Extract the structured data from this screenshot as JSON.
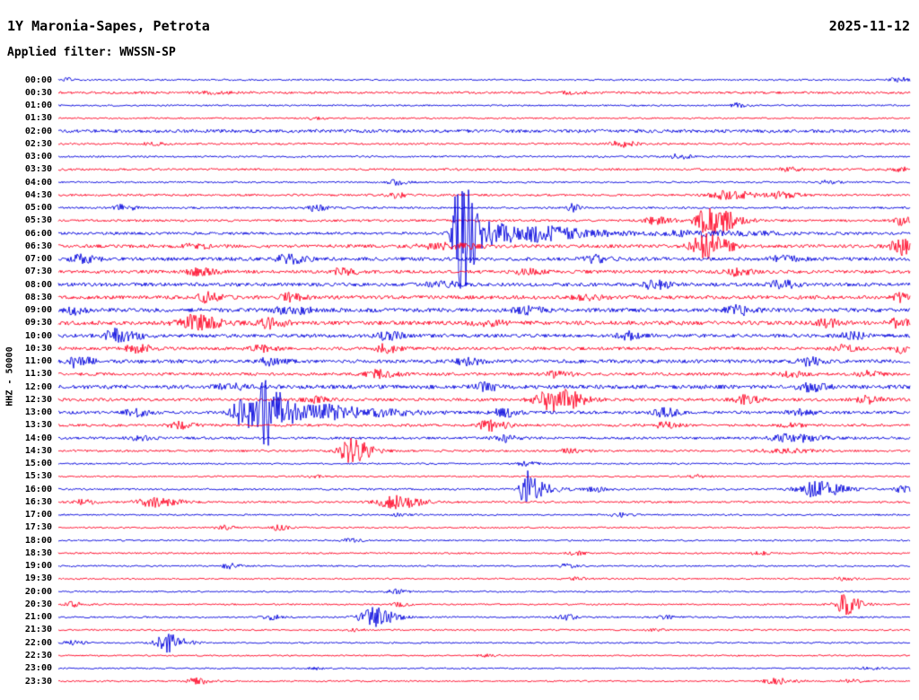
{
  "header": {
    "station_title": "1Y Maronia-Sapes, Petrota",
    "date": "2025-11-12",
    "filter_label": "Applied filter: WWSSN-SP"
  },
  "y_axis_label": "HHZ - 50000",
  "colors": {
    "trace_blue": "#0000dd",
    "trace_red": "#ff0022",
    "text": "#000000",
    "background": "#ffffff"
  },
  "chart_data": {
    "type": "line",
    "subtype": "helicorder-seismogram",
    "title": "1Y Maronia-Sapes, Petrota",
    "date": "2025-11-12",
    "filter": "WWSSN-SP",
    "channel_scale": "HHZ - 50000",
    "minutes_per_row": 30,
    "legend": "alternating blue/red traces, one 30-minute segment per row",
    "event_format": "[x_fraction_of_row, peak_amplitude_px, rise_px, decay_px]",
    "rows": [
      {
        "time": "00:00",
        "color": "blue",
        "noise": 0.9,
        "events": [
          [
            0.985,
            3,
            6,
            10
          ],
          [
            0.01,
            2,
            3,
            6
          ]
        ]
      },
      {
        "time": "00:30",
        "color": "red",
        "noise": 1.3,
        "events": [
          [
            0.18,
            1.5,
            8,
            14
          ],
          [
            0.6,
            1.2,
            8,
            12
          ]
        ]
      },
      {
        "time": "01:00",
        "color": "blue",
        "noise": 0.9,
        "events": [
          [
            0.795,
            2.5,
            4,
            8
          ]
        ]
      },
      {
        "time": "01:30",
        "color": "red",
        "noise": 0.9,
        "events": [
          [
            0.3,
            1.2,
            6,
            10
          ]
        ]
      },
      {
        "time": "02:00",
        "color": "blue",
        "noise": 1.8,
        "events": []
      },
      {
        "time": "02:30",
        "color": "red",
        "noise": 1.1,
        "events": [
          [
            0.658,
            3.5,
            8,
            14
          ],
          [
            0.11,
            1.8,
            6,
            10
          ]
        ]
      },
      {
        "time": "03:00",
        "color": "blue",
        "noise": 1.0,
        "events": [
          [
            0.727,
            2.5,
            8,
            12
          ]
        ]
      },
      {
        "time": "03:30",
        "color": "red",
        "noise": 1.2,
        "events": [
          [
            0.858,
            2,
            8,
            12
          ],
          [
            0.99,
            2.5,
            6,
            10
          ]
        ]
      },
      {
        "time": "04:00",
        "color": "blue",
        "noise": 1.0,
        "events": [
          [
            0.395,
            3.5,
            5,
            9
          ],
          [
            0.9,
            2,
            6,
            10
          ]
        ]
      },
      {
        "time": "04:30",
        "color": "red",
        "noise": 1.2,
        "events": [
          [
            0.785,
            4.5,
            14,
            24
          ],
          [
            0.395,
            3.5,
            6,
            10
          ],
          [
            0.848,
            3.5,
            8,
            14
          ]
        ]
      },
      {
        "time": "05:00",
        "color": "blue",
        "noise": 1.1,
        "events": [
          [
            0.074,
            3.5,
            7,
            12
          ],
          [
            0.3,
            3.5,
            6,
            10
          ],
          [
            0.603,
            5,
            3,
            6
          ]
        ]
      },
      {
        "time": "05:30",
        "color": "red",
        "noise": 1.3,
        "events": [
          [
            0.764,
            16,
            10,
            22
          ],
          [
            0.99,
            5,
            6,
            10
          ],
          [
            0.7,
            4,
            8,
            16
          ]
        ]
      },
      {
        "time": "06:00",
        "color": "blue",
        "noise": 1.5,
        "events": [
          [
            0.474,
            62,
            6,
            9
          ],
          [
            0.468,
            18,
            4,
            6
          ],
          [
            0.49,
            14,
            8,
            40
          ],
          [
            0.56,
            6,
            10,
            60
          ],
          [
            0.75,
            3,
            30,
            60
          ]
        ]
      },
      {
        "time": "06:30",
        "color": "red",
        "noise": 1.8,
        "events": [
          [
            0.758,
            13,
            10,
            20
          ],
          [
            0.99,
            9,
            8,
            10
          ],
          [
            0.45,
            3,
            20,
            30
          ],
          [
            0.16,
            2.5,
            10,
            15
          ]
        ]
      },
      {
        "time": "07:00",
        "color": "blue",
        "noise": 2.0,
        "events": [
          [
            0.026,
            4,
            8,
            14
          ],
          [
            0.269,
            4.5,
            10,
            16
          ],
          [
            0.627,
            4,
            8,
            14
          ],
          [
            0.85,
            3,
            10,
            14
          ]
        ]
      },
      {
        "time": "07:30",
        "color": "red",
        "noise": 1.8,
        "events": [
          [
            0.163,
            4.5,
            8,
            14
          ],
          [
            0.332,
            4,
            8,
            12
          ],
          [
            0.795,
            4,
            8,
            12
          ],
          [
            0.55,
            3,
            10,
            14
          ]
        ]
      },
      {
        "time": "08:00",
        "color": "blue",
        "noise": 2.0,
        "events": [
          [
            0.7,
            5.5,
            8,
            12
          ],
          [
            0.848,
            4.5,
            8,
            12
          ],
          [
            0.45,
            3,
            12,
            16
          ]
        ]
      },
      {
        "time": "08:30",
        "color": "red",
        "noise": 2.0,
        "events": [
          [
            0.174,
            5,
            8,
            14
          ],
          [
            0.269,
            4,
            8,
            12
          ],
          [
            0.99,
            4.5,
            6,
            10
          ],
          [
            0.62,
            3,
            10,
            14
          ]
        ]
      },
      {
        "time": "09:00",
        "color": "blue",
        "noise": 2.2,
        "events": [
          [
            0.269,
            6,
            10,
            16
          ],
          [
            0.795,
            5.5,
            8,
            14
          ],
          [
            0.016,
            4.5,
            6,
            10
          ],
          [
            0.55,
            3.5,
            10,
            14
          ]
        ]
      },
      {
        "time": "09:30",
        "color": "red",
        "noise": 2.2,
        "events": [
          [
            0.158,
            8,
            12,
            22
          ],
          [
            0.248,
            5.5,
            8,
            14
          ],
          [
            0.901,
            4.5,
            8,
            12
          ],
          [
            0.985,
            5,
            6,
            10
          ],
          [
            0.5,
            3,
            10,
            16
          ]
        ]
      },
      {
        "time": "10:00",
        "color": "blue",
        "noise": 2.0,
        "events": [
          [
            0.068,
            7,
            10,
            18
          ],
          [
            0.384,
            4.5,
            8,
            14
          ],
          [
            0.669,
            4,
            8,
            12
          ],
          [
            0.93,
            3.5,
            8,
            12
          ]
        ]
      },
      {
        "time": "10:30",
        "color": "red",
        "noise": 1.7,
        "events": [
          [
            0.09,
            4.5,
            8,
            14
          ],
          [
            0.237,
            3.5,
            8,
            12
          ],
          [
            0.384,
            4.5,
            8,
            12
          ],
          [
            0.922,
            3.5,
            8,
            12
          ],
          [
            0.99,
            4.5,
            6,
            8
          ]
        ]
      },
      {
        "time": "11:00",
        "color": "blue",
        "noise": 2.0,
        "events": [
          [
            0.021,
            6.5,
            6,
            12
          ],
          [
            0.248,
            4,
            8,
            12
          ],
          [
            0.479,
            4,
            8,
            12
          ],
          [
            0.88,
            4,
            8,
            12
          ]
        ]
      },
      {
        "time": "11:30",
        "color": "red",
        "noise": 1.7,
        "events": [
          [
            0.374,
            4.5,
            8,
            14
          ],
          [
            0.585,
            3.5,
            8,
            12
          ],
          [
            0.859,
            3.5,
            8,
            12
          ],
          [
            0.95,
            3,
            8,
            10
          ]
        ]
      },
      {
        "time": "12:00",
        "color": "blue",
        "noise": 2.2,
        "events": [
          [
            0.5,
            4,
            8,
            12
          ],
          [
            0.88,
            4.5,
            8,
            14
          ],
          [
            0.2,
            3,
            10,
            14
          ]
        ]
      },
      {
        "time": "12:30",
        "color": "red",
        "noise": 1.7,
        "events": [
          [
            0.58,
            15,
            12,
            22
          ],
          [
            0.806,
            4.5,
            8,
            12
          ],
          [
            0.3,
            3,
            8,
            12
          ],
          [
            0.95,
            4,
            8,
            12
          ]
        ]
      },
      {
        "time": "13:00",
        "color": "blue",
        "noise": 1.6,
        "events": [
          [
            0.242,
            38,
            8,
            12
          ],
          [
            0.216,
            16,
            8,
            10
          ],
          [
            0.262,
            12,
            6,
            30
          ],
          [
            0.32,
            6,
            10,
            60
          ],
          [
            0.521,
            5.5,
            8,
            12
          ],
          [
            0.711,
            4.5,
            8,
            12
          ],
          [
            0.869,
            4,
            8,
            12
          ],
          [
            0.09,
            4,
            8,
            12
          ]
        ]
      },
      {
        "time": "13:30",
        "color": "red",
        "noise": 1.4,
        "events": [
          [
            0.142,
            3.5,
            8,
            12
          ],
          [
            0.506,
            6,
            8,
            14
          ],
          [
            0.711,
            3,
            8,
            12
          ],
          [
            0.86,
            2.5,
            8,
            10
          ]
        ]
      },
      {
        "time": "14:00",
        "color": "blue",
        "noise": 1.4,
        "events": [
          [
            0.521,
            4,
            8,
            12
          ],
          [
            0.859,
            4.5,
            16,
            24
          ],
          [
            0.095,
            2.5,
            8,
            10
          ]
        ]
      },
      {
        "time": "14:30",
        "color": "red",
        "noise": 1.2,
        "events": [
          [
            0.342,
            13,
            8,
            18
          ],
          [
            0.85,
            2.5,
            16,
            24
          ],
          [
            0.6,
            2,
            8,
            12
          ]
        ]
      },
      {
        "time": "15:00",
        "color": "blue",
        "noise": 0.9,
        "events": [
          [
            0.548,
            2.5,
            6,
            10
          ]
        ]
      },
      {
        "time": "15:30",
        "color": "red",
        "noise": 0.9,
        "events": [
          [
            0.3,
            1.5,
            6,
            10
          ],
          [
            0.75,
            1.5,
            6,
            10
          ]
        ]
      },
      {
        "time": "16:00",
        "color": "blue",
        "noise": 1.1,
        "events": [
          [
            0.548,
            20,
            4,
            8
          ],
          [
            0.556,
            8,
            4,
            20
          ],
          [
            0.89,
            9,
            14,
            22
          ],
          [
            0.99,
            3.5,
            6,
            10
          ],
          [
            0.63,
            3,
            6,
            10
          ]
        ]
      },
      {
        "time": "16:30",
        "color": "red",
        "noise": 1.1,
        "events": [
          [
            0.111,
            5.5,
            12,
            20
          ],
          [
            0.395,
            7,
            14,
            22
          ],
          [
            0.03,
            2.5,
            8,
            10
          ]
        ]
      },
      {
        "time": "17:00",
        "color": "blue",
        "noise": 0.9,
        "events": [
          [
            0.658,
            2.5,
            6,
            10
          ],
          [
            0.4,
            1.5,
            6,
            10
          ]
        ]
      },
      {
        "time": "17:30",
        "color": "red",
        "noise": 0.9,
        "events": [
          [
            0.195,
            3,
            6,
            10
          ],
          [
            0.258,
            2.5,
            6,
            10
          ]
        ]
      },
      {
        "time": "18:00",
        "color": "blue",
        "noise": 0.9,
        "events": [
          [
            0.342,
            2,
            6,
            10
          ]
        ]
      },
      {
        "time": "18:30",
        "color": "red",
        "noise": 0.9,
        "events": [
          [
            0.606,
            2,
            6,
            10
          ],
          [
            0.82,
            2,
            6,
            10
          ]
        ]
      },
      {
        "time": "19:00",
        "color": "blue",
        "noise": 0.9,
        "events": [
          [
            0.2,
            3,
            6,
            10
          ],
          [
            0.595,
            2,
            6,
            10
          ]
        ]
      },
      {
        "time": "19:30",
        "color": "red",
        "noise": 0.9,
        "events": [
          [
            0.606,
            2,
            6,
            10
          ],
          [
            0.92,
            2,
            6,
            10
          ]
        ]
      },
      {
        "time": "20:00",
        "color": "blue",
        "noise": 0.9,
        "events": [
          [
            0.395,
            2.5,
            6,
            10
          ]
        ]
      },
      {
        "time": "20:30",
        "color": "red",
        "noise": 0.9,
        "events": [
          [
            0.922,
            11,
            8,
            14
          ],
          [
            0.016,
            2.5,
            6,
            10
          ],
          [
            0.4,
            2,
            6,
            10
          ]
        ]
      },
      {
        "time": "21:00",
        "color": "blue",
        "noise": 0.9,
        "events": [
          [
            0.369,
            11,
            10,
            18
          ],
          [
            0.248,
            3,
            6,
            10
          ],
          [
            0.595,
            3,
            6,
            10
          ],
          [
            0.71,
            2,
            6,
            10
          ]
        ]
      },
      {
        "time": "21:30",
        "color": "red",
        "noise": 0.9,
        "events": [
          [
            0.342,
            2,
            6,
            10
          ],
          [
            0.7,
            1.5,
            6,
            10
          ]
        ]
      },
      {
        "time": "22:00",
        "color": "blue",
        "noise": 0.9,
        "events": [
          [
            0.126,
            10,
            8,
            16
          ],
          [
            0.016,
            2,
            6,
            10
          ]
        ]
      },
      {
        "time": "22:30",
        "color": "red",
        "noise": 0.8,
        "events": [
          [
            0.5,
            1.2,
            6,
            10
          ]
        ]
      },
      {
        "time": "23:00",
        "color": "blue",
        "noise": 0.8,
        "events": [
          [
            0.3,
            1.2,
            6,
            10
          ],
          [
            0.95,
            1.5,
            6,
            10
          ]
        ]
      },
      {
        "time": "23:30",
        "color": "red",
        "noise": 0.9,
        "events": [
          [
            0.163,
            3.5,
            8,
            12
          ],
          [
            0.843,
            3,
            10,
            16
          ],
          [
            0.93,
            2,
            6,
            10
          ]
        ]
      }
    ]
  }
}
